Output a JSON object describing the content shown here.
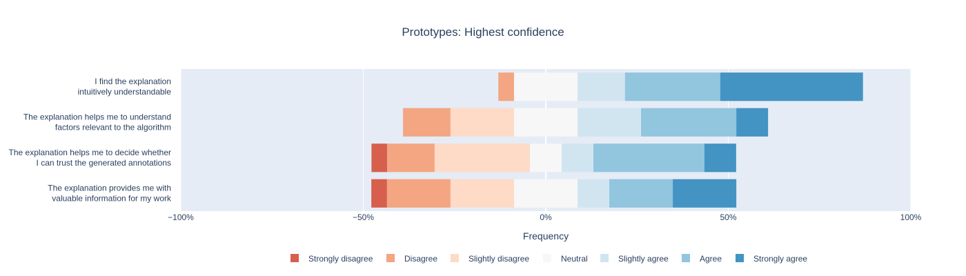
{
  "chart_data": {
    "type": "bar",
    "orientation": "horizontal",
    "barmode": "diverging-stacked",
    "title": "Prototypes: Highest confidence",
    "xlabel": "Frequency",
    "ylabel": "",
    "xlim": [
      -100,
      100
    ],
    "x_ticks": [
      -100,
      -50,
      0,
      50,
      100
    ],
    "x_tick_labels": [
      "−100%",
      "−50%",
      "0%",
      "50%",
      "100%"
    ],
    "grid": true,
    "legend_position": "bottom",
    "categories": [
      [
        "I find the explanation",
        "intuitively understandable"
      ],
      [
        "The explanation helps me to understand",
        "factors relevant to the algorithm"
      ],
      [
        "The explanation helps me to decide whether",
        "I can trust the generated annotations"
      ],
      [
        "The explanation provides me with",
        "valuable information for my work"
      ]
    ],
    "series": [
      {
        "name": "Strongly disagree",
        "color": "#d6604d",
        "values": [
          0,
          0,
          4.3,
          4.3
        ]
      },
      {
        "name": "Disagree",
        "color": "#f4a582",
        "values": [
          4.3,
          13.0,
          13.0,
          17.4
        ]
      },
      {
        "name": "Slightly disagree",
        "color": "#fddbc7",
        "values": [
          0,
          17.4,
          26.1,
          17.4
        ]
      },
      {
        "name": "Neutral",
        "color": "#f7f7f7",
        "values": [
          17.4,
          17.4,
          8.7,
          17.4
        ]
      },
      {
        "name": "Slightly agree",
        "color": "#d1e5f0",
        "values": [
          13.0,
          17.4,
          8.7,
          8.7
        ]
      },
      {
        "name": "Agree",
        "color": "#92c5de",
        "values": [
          26.1,
          26.1,
          30.4,
          17.4
        ]
      },
      {
        "name": "Strongly agree",
        "color": "#4393c3",
        "values": [
          39.1,
          8.7,
          8.7,
          17.4
        ]
      }
    ]
  },
  "colors": {
    "plot_background": "#e5ecf6",
    "grid": "#ffffff",
    "text": "#2a3f5f"
  }
}
